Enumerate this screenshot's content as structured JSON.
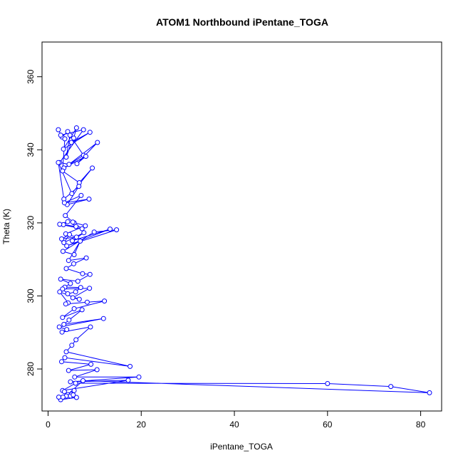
{
  "chart_data": {
    "type": "line",
    "title": "ATOM1 Northbound iPentane_TOGA",
    "xlabel": "iPentane_TOGA",
    "ylabel": "Theta (K)",
    "xlim": [
      -1.3,
      84.5
    ],
    "ylim": [
      268.5,
      369.5
    ],
    "x_ticks": [
      0,
      20,
      40,
      60,
      80
    ],
    "y_ticks": [
      280,
      300,
      320,
      340,
      360
    ],
    "grid": false,
    "series_color": "#0000ff",
    "marker": "open-circle",
    "series": [
      {
        "x": [
          2.2,
          3.0,
          4.2,
          5.5,
          6.1,
          3.3,
          9.0,
          5.0,
          3.9,
          4.7,
          7.6,
          3.4,
          8.1,
          6.2,
          10.6,
          4.5,
          2.5,
          7.6,
          2.7,
          3.6,
          3.1,
          6.7,
          9.5,
          5.1,
          2.2,
          3.4,
          6.6,
          4.1,
          8.8,
          3.5,
          7.1,
          3.7,
          5.6,
          6.0,
          3.3,
          4.2,
          2.5,
          7.3,
          5.3,
          8.0,
          3.8,
          6.1,
          2.9,
          4.6,
          3.4,
          7.7,
          5.2,
          13.3,
          4.0,
          14.7,
          9.9,
          3.2,
          5.6,
          6.9,
          4.4,
          8.2,
          5.5,
          3.9,
          7.4,
          9.0,
          6.4,
          2.7,
          4.8,
          3.6,
          7.0,
          5.9,
          4.2,
          3.1,
          8.9,
          5.3,
          6.7,
          2.5,
          4.3,
          3.8,
          8.4,
          12.1,
          5.6,
          3.1,
          7.3,
          4.5,
          3.4,
          11.9,
          2.4,
          4.0,
          3.0,
          9.1,
          6.0,
          5.1,
          3.9,
          17.6,
          3.6,
          2.9,
          9.2,
          4.4,
          10.5,
          5.7,
          19.5,
          4.8,
          17.2,
          3.1,
          5.9,
          60.0,
          73.6,
          81.9,
          7.5,
          4.2,
          5.6,
          5.0,
          3.9,
          3.5,
          4.8,
          6.1,
          2.7,
          5.4,
          3.2,
          2.3
        ],
        "y": [
          345.5,
          343.5,
          345.0,
          343.2,
          346.0,
          340.2,
          344.8,
          342.0,
          338.0,
          344.0,
          338.5,
          335.0,
          338.2,
          336.2,
          342.0,
          336.0,
          336.5,
          345.5,
          344.0,
          343.0,
          334.2,
          331.0,
          335.0,
          328.0,
          336.5,
          326.5,
          330.0,
          325.0,
          326.5,
          325.5,
          327.5,
          322.0,
          320.0,
          319.0,
          319.5,
          320.3,
          319.6,
          318.4,
          320.2,
          319.2,
          317.0,
          316.1,
          315.6,
          316.8,
          314.6,
          317.3,
          315.1,
          318.3,
          313.7,
          318.1,
          317.5,
          312.2,
          311.3,
          315.0,
          309.7,
          310.4,
          308.8,
          307.5,
          306.1,
          305.9,
          304.0,
          304.6,
          303.4,
          302.4,
          302.3,
          301.1,
          300.6,
          301.9,
          302.1,
          299.5,
          299.1,
          301.1,
          298.1,
          297.8,
          298.3,
          298.6,
          296.5,
          294.1,
          296.2,
          293.4,
          292.2,
          293.8,
          291.5,
          290.8,
          290.1,
          291.5,
          288.0,
          286.5,
          284.7,
          280.7,
          283.1,
          282.0,
          281.3,
          279.6,
          279.8,
          277.8,
          277.8,
          276.5,
          276.9,
          274.1,
          276.1,
          276.0,
          275.2,
          273.5,
          276.8,
          273.0,
          274.1,
          273.1,
          272.6,
          273.8,
          272.6,
          272.2,
          271.6,
          272.9,
          272.3,
          272.3
        ]
      }
    ]
  }
}
